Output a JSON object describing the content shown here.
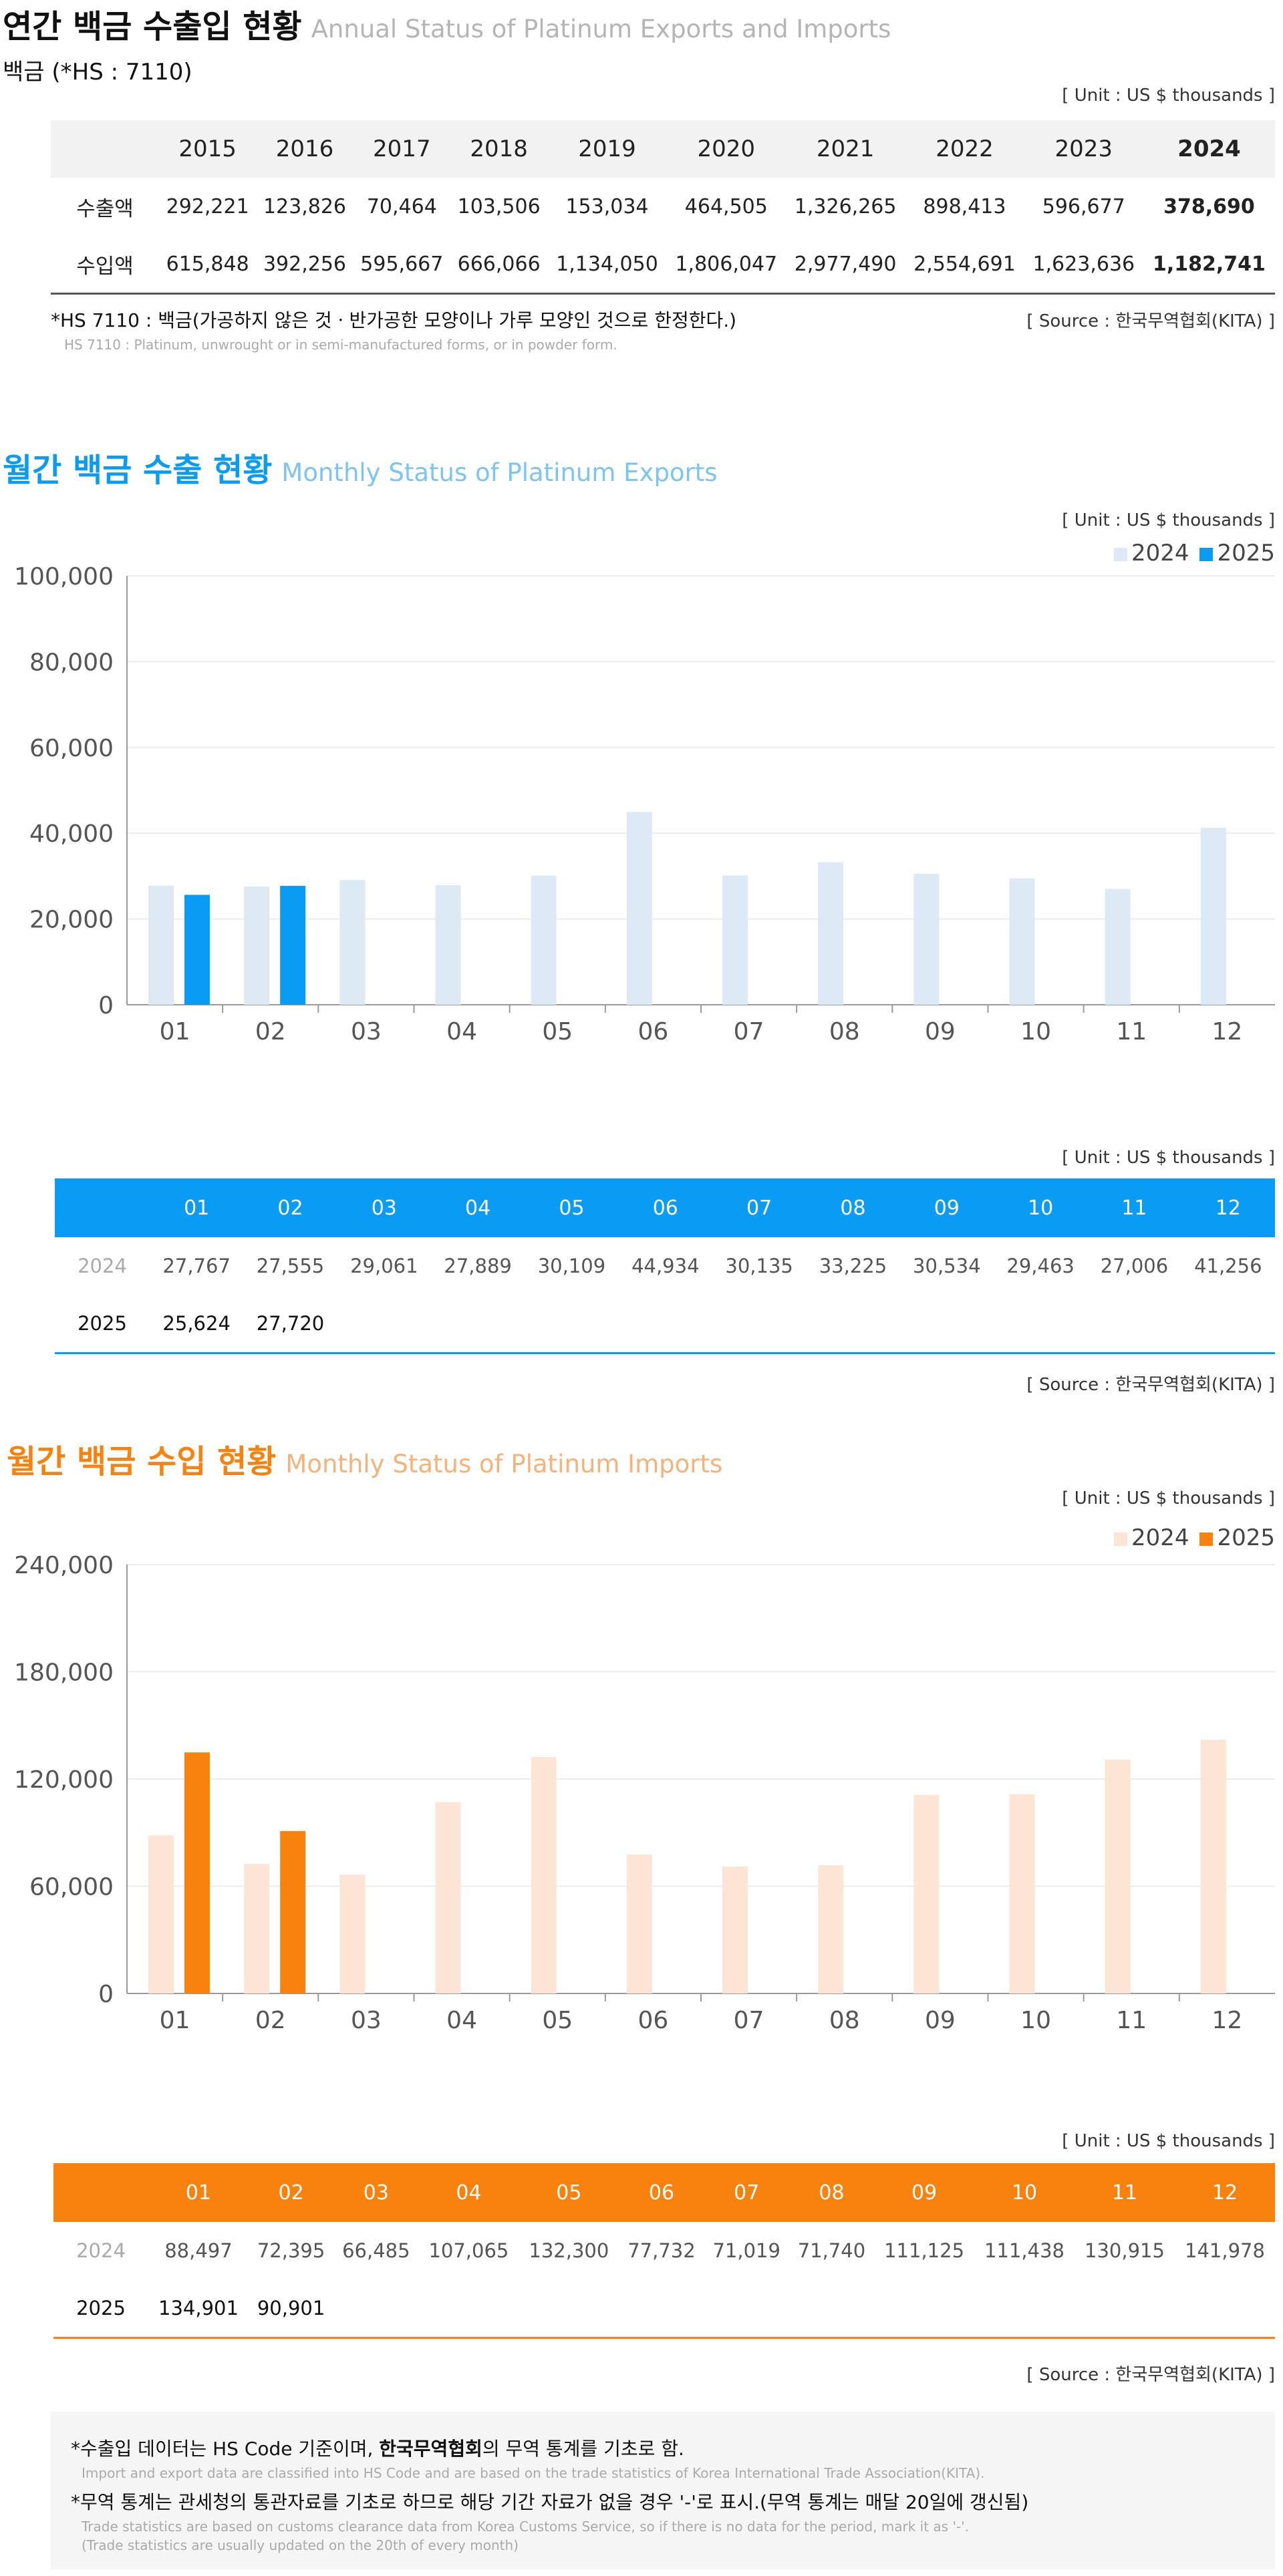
{
  "annual": {
    "title": "연간 백금 수출입 현황",
    "subtitle": "Annual Status of Platinum Exports and Imports",
    "item": "백금 (*HS : 7110)",
    "unit": "[ Unit : US $ thousands ]",
    "years": [
      "2015",
      "2016",
      "2017",
      "2018",
      "2019",
      "2020",
      "2021",
      "2022",
      "2023",
      "2024"
    ],
    "rows": [
      {
        "label": "수출액",
        "values": [
          "292,221",
          "123,826",
          "70,464",
          "103,506",
          "153,034",
          "464,505",
          "1,326,265",
          "898,413",
          "596,677",
          "378,690"
        ]
      },
      {
        "label": "수입액",
        "values": [
          "615,848",
          "392,256",
          "595,667",
          "666,066",
          "1,134,050",
          "1,806,047",
          "2,977,490",
          "2,554,691",
          "1,623,636",
          "1,182,741"
        ]
      }
    ],
    "note": "*HS 7110 : 백금(가공하지 않은 것ㆍ반가공한 모양이나 가루 모양인 것으로 한정한다.)",
    "note_en": "HS 7110 : Platinum, unwrought or in semi-manufactured forms, or in powder form.",
    "source": "[ Source : 한국무역협회(KITA) ]"
  },
  "exports": {
    "title": "월간 백금 수출 현황",
    "subtitle": "Monthly Status of Platinum Exports",
    "unit": "[ Unit : US $ thousands ]",
    "table_unit": "[ Unit : US $ thousands ]",
    "source": "[ Source : 한국무역협회(KITA) ]",
    "color_2024": "#dde9f5",
    "color_2025": "#0a9bf5",
    "table": {
      "months": [
        "01",
        "02",
        "03",
        "04",
        "05",
        "06",
        "07",
        "08",
        "09",
        "10",
        "11",
        "12"
      ],
      "row2024_label": "2024",
      "row2024": [
        "27,767",
        "27,555",
        "29,061",
        "27,889",
        "30,109",
        "44,934",
        "30,135",
        "33,225",
        "30,534",
        "29,463",
        "27,006",
        "41,256"
      ],
      "row2025_label": "2025",
      "row2025": [
        "25,624",
        "27,720",
        "",
        "",
        "",
        "",
        "",
        "",
        "",
        "",
        "",
        ""
      ]
    }
  },
  "imports": {
    "title": "월간 백금 수입 현황",
    "subtitle": "Monthly Status of Platinum Imports",
    "unit": "[ Unit : US $ thousands ]",
    "table_unit": "[ Unit : US $ thousands ]",
    "source": "[ Source : 한국무역협회(KITA) ]",
    "color_2024": "#fce5d4",
    "color_2025": "#f9820f",
    "table": {
      "months": [
        "01",
        "02",
        "03",
        "04",
        "05",
        "06",
        "07",
        "08",
        "09",
        "10",
        "11",
        "12"
      ],
      "row2024_label": "2024",
      "row2024": [
        "88,497",
        "72,395",
        "66,485",
        "107,065",
        "132,300",
        "77,732",
        "71,019",
        "71,740",
        "111,125",
        "111,438",
        "130,915",
        "141,978"
      ],
      "row2025_label": "2025",
      "row2025": [
        "134,901",
        "90,901",
        "",
        "",
        "",
        "",
        "",
        "",
        "",
        "",
        "",
        ""
      ]
    }
  },
  "chart_data": [
    {
      "type": "bar",
      "title": "",
      "xlabel": "",
      "ylabel": "",
      "categories": [
        "01",
        "02",
        "03",
        "04",
        "05",
        "06",
        "07",
        "08",
        "09",
        "10",
        "11",
        "12"
      ],
      "series": [
        {
          "name": "2024",
          "values": [
            27767,
            27555,
            29061,
            27889,
            30109,
            44934,
            30135,
            33225,
            30534,
            29463,
            27006,
            41256
          ]
        },
        {
          "name": "2025",
          "values": [
            25624,
            27720,
            null,
            null,
            null,
            null,
            null,
            null,
            null,
            null,
            null,
            null
          ]
        }
      ],
      "yticks": [
        "0",
        "20,000",
        "40,000",
        "60,000",
        "80,000",
        "100,000"
      ],
      "ylim": [
        0,
        100000
      ],
      "grid": true,
      "legend": "top-right"
    },
    {
      "type": "bar",
      "title": "",
      "xlabel": "",
      "ylabel": "",
      "categories": [
        "01",
        "02",
        "03",
        "04",
        "05",
        "06",
        "07",
        "08",
        "09",
        "10",
        "11",
        "12"
      ],
      "series": [
        {
          "name": "2024",
          "values": [
            88497,
            72395,
            66485,
            107065,
            132300,
            77732,
            71019,
            71740,
            111125,
            111438,
            130915,
            141978
          ]
        },
        {
          "name": "2025",
          "values": [
            134901,
            90901,
            null,
            null,
            null,
            null,
            null,
            null,
            null,
            null,
            null,
            null
          ]
        }
      ],
      "yticks": [
        "0",
        "60,000",
        "120,000",
        "180,000",
        "240,000"
      ],
      "ylim": [
        0,
        240000
      ],
      "grid": true,
      "legend": "top-right"
    }
  ],
  "footer": {
    "line1_a": "*수출입 데이터는 HS Code 기준이며, ",
    "line1_b": "한국무역협회",
    "line1_c": "의 무역 통계를 기초로 함.",
    "line1_en": "Import and export data are classified into HS Code and are based on the trade statistics of Korea International  Trade Association(KITA).",
    "line2": "*무역 통계는 관세청의  통관자료를 기초로 하므로 해당 기간 자료가 없을 경우 '-'로 표시.(무역 통계는 매달 20일에 갱신됨)",
    "line2_en": "Trade statistics are based on customs clearance data from Korea Customs Service, so if there is no data for the period, mark it as '-'.",
    "line3_en": "(Trade statistics are usually updated on the 20th of every month)"
  }
}
